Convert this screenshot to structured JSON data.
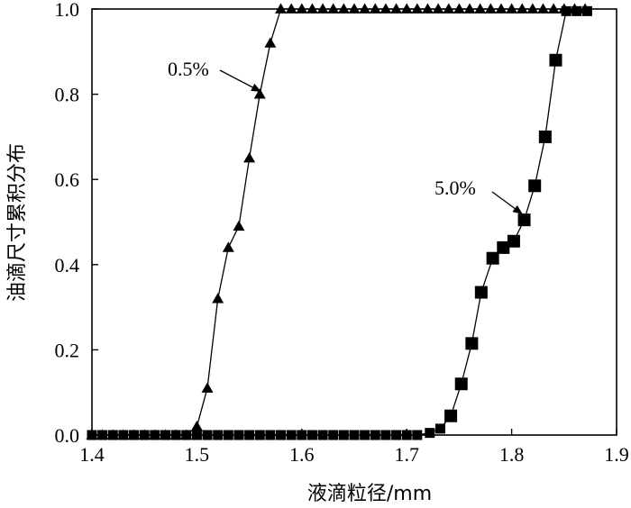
{
  "chart_data": {
    "type": "scatter",
    "title": "",
    "xlabel": "液滴粒径/mm",
    "ylabel": "油滴尺寸累积分布",
    "xlim": [
      1.4,
      1.9
    ],
    "ylim": [
      0.0,
      1.0
    ],
    "xticks": [
      "1.4",
      "1.5",
      "1.6",
      "1.7",
      "1.8",
      "1.9"
    ],
    "yticks": [
      "0.0",
      "0.2",
      "0.4",
      "0.6",
      "0.8",
      "1.0"
    ],
    "grid": false,
    "series": [
      {
        "name": "0.5%",
        "marker": "triangle",
        "line": true,
        "x": [
          1.4,
          1.41,
          1.42,
          1.43,
          1.44,
          1.45,
          1.46,
          1.47,
          1.48,
          1.49,
          1.5,
          1.51,
          1.52,
          1.53,
          1.54,
          1.55,
          1.56,
          1.57,
          1.58,
          1.59,
          1.6,
          1.61,
          1.62,
          1.63,
          1.64,
          1.65,
          1.66,
          1.67,
          1.68,
          1.69,
          1.7,
          1.71,
          1.72,
          1.73,
          1.74,
          1.75,
          1.76,
          1.77,
          1.78,
          1.79,
          1.8,
          1.81,
          1.82,
          1.83,
          1.84,
          1.85,
          1.86,
          1.87
        ],
        "y": [
          0,
          0,
          0,
          0,
          0,
          0,
          0,
          0,
          0,
          0,
          0.02,
          0.11,
          0.32,
          0.44,
          0.49,
          0.65,
          0.8,
          0.92,
          1,
          1,
          1,
          1,
          1,
          1,
          1,
          1,
          1,
          1,
          1,
          1,
          1,
          1,
          1,
          1,
          1,
          1,
          1,
          1,
          1,
          1,
          1,
          1,
          1,
          1,
          1,
          1,
          1,
          1
        ]
      },
      {
        "name": "5.0%",
        "marker": "square",
        "line": true,
        "x": [
          1.4,
          1.41,
          1.42,
          1.43,
          1.44,
          1.45,
          1.46,
          1.47,
          1.48,
          1.49,
          1.5,
          1.51,
          1.52,
          1.53,
          1.54,
          1.55,
          1.56,
          1.57,
          1.58,
          1.59,
          1.6,
          1.61,
          1.62,
          1.63,
          1.64,
          1.65,
          1.66,
          1.67,
          1.68,
          1.69,
          1.7,
          1.71,
          1.722,
          1.732,
          1.742,
          1.752,
          1.762,
          1.771,
          1.782,
          1.792,
          1.802,
          1.812,
          1.822,
          1.832,
          1.842,
          1.852,
          1.862,
          1.872
        ],
        "y": [
          0,
          0,
          0,
          0,
          0,
          0,
          0,
          0,
          0,
          0,
          0,
          0,
          0,
          0,
          0,
          0,
          0,
          0,
          0,
          0,
          0,
          0,
          0,
          0,
          0,
          0,
          0,
          0,
          0,
          0,
          0,
          0,
          0.005,
          0.015,
          0.045,
          0.12,
          0.215,
          0.335,
          0.415,
          0.44,
          0.455,
          0.505,
          0.585,
          0.7,
          0.88,
          0.995,
          0.995,
          0.995
        ]
      }
    ],
    "annotations": [
      {
        "text": "0.5%",
        "series": 0
      },
      {
        "text": "5.0%",
        "series": 1
      }
    ]
  }
}
